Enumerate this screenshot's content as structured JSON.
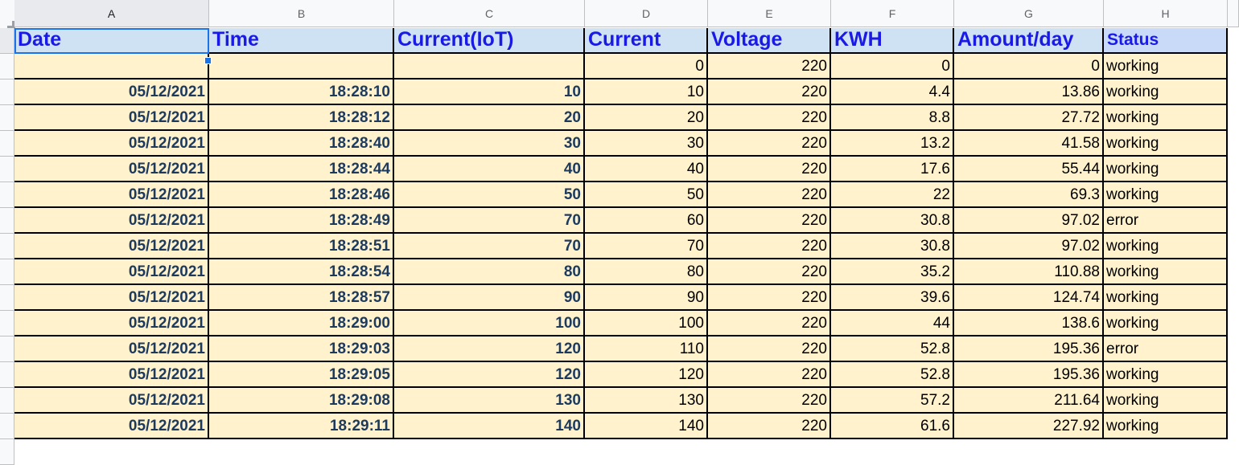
{
  "columns": [
    "A",
    "B",
    "C",
    "D",
    "E",
    "F",
    "G",
    "H"
  ],
  "headers": [
    "Date",
    "Time",
    "Current(IoT)",
    "Current",
    "Voltage",
    "KWH",
    "Amount/day",
    "Status"
  ],
  "rows": [
    [
      "",
      "",
      "",
      "0",
      "220",
      "0",
      "0",
      "working"
    ],
    [
      "05/12/2021",
      "18:28:10",
      "10",
      "10",
      "220",
      "4.4",
      "13.86",
      "working"
    ],
    [
      "05/12/2021",
      "18:28:12",
      "20",
      "20",
      "220",
      "8.8",
      "27.72",
      "working"
    ],
    [
      "05/12/2021",
      "18:28:40",
      "30",
      "30",
      "220",
      "13.2",
      "41.58",
      "working"
    ],
    [
      "05/12/2021",
      "18:28:44",
      "40",
      "40",
      "220",
      "17.6",
      "55.44",
      "working"
    ],
    [
      "05/12/2021",
      "18:28:46",
      "50",
      "50",
      "220",
      "22",
      "69.3",
      "working"
    ],
    [
      "05/12/2021",
      "18:28:49",
      "70",
      "60",
      "220",
      "30.8",
      "97.02",
      "error"
    ],
    [
      "05/12/2021",
      "18:28:51",
      "70",
      "70",
      "220",
      "30.8",
      "97.02",
      "working"
    ],
    [
      "05/12/2021",
      "18:28:54",
      "80",
      "80",
      "220",
      "35.2",
      "110.88",
      "working"
    ],
    [
      "05/12/2021",
      "18:28:57",
      "90",
      "90",
      "220",
      "39.6",
      "124.74",
      "working"
    ],
    [
      "05/12/2021",
      "18:29:00",
      "100",
      "100",
      "220",
      "44",
      "138.6",
      "working"
    ],
    [
      "05/12/2021",
      "18:29:03",
      "120",
      "110",
      "220",
      "52.8",
      "195.36",
      "error"
    ],
    [
      "05/12/2021",
      "18:29:05",
      "120",
      "120",
      "220",
      "52.8",
      "195.36",
      "working"
    ],
    [
      "05/12/2021",
      "18:29:08",
      "130",
      "130",
      "220",
      "57.2",
      "211.64",
      "working"
    ],
    [
      "05/12/2021",
      "18:29:11",
      "140",
      "140",
      "220",
      "61.6",
      "227.92",
      "working"
    ]
  ],
  "colors": {
    "header_fill": "#cfe2f3",
    "header_text": "#1a1ae6",
    "data_fill": "#fff2cc",
    "selection": "#1a73e8"
  }
}
